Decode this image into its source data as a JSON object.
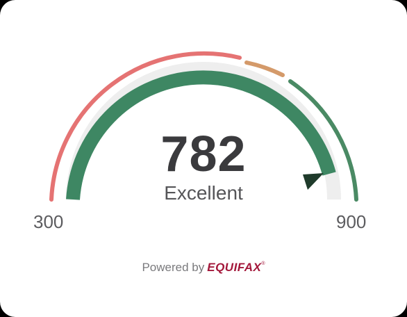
{
  "score_widget": {
    "score": "782",
    "rating": "Excellent",
    "range_min": "300",
    "range_max": "900",
    "score_min": 300,
    "score_max": 900,
    "score_value": 782,
    "powered_by": "Powered by",
    "brand": "EQUIFAX",
    "trademark": "®"
  },
  "colors": {
    "poor": "#e57373",
    "fair": "#d49a6a",
    "good": "#4a8a64",
    "progress": "#3e8763",
    "track": "#eeeeee",
    "marker": "#1f3b2b",
    "brand": "#a3173a"
  }
}
